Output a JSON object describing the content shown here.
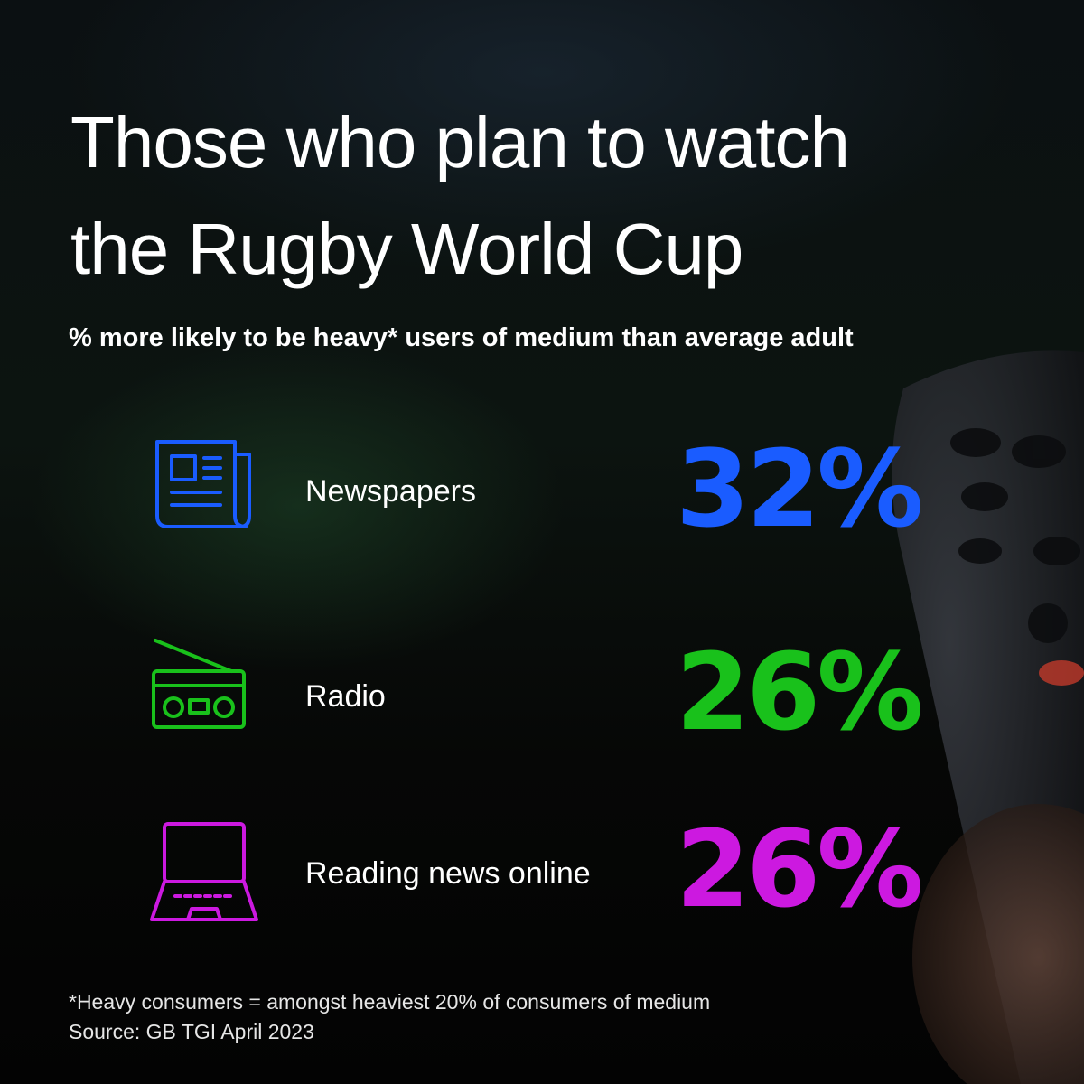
{
  "header": {
    "title_lines": [
      "Those who plan to watch",
      "the Rugby World Cup"
    ],
    "subtitle": "% more likely to be heavy* users of medium than average adult"
  },
  "items": [
    {
      "label": "Newspapers",
      "value": "32%"
    },
    {
      "label": "Radio",
      "value": "26%"
    },
    {
      "label": "Reading news online",
      "value": "26%"
    }
  ],
  "footer": {
    "note": "*Heavy consumers = amongst heaviest 20% of consumers of medium",
    "source": "Source: GB TGI April 2023"
  }
}
